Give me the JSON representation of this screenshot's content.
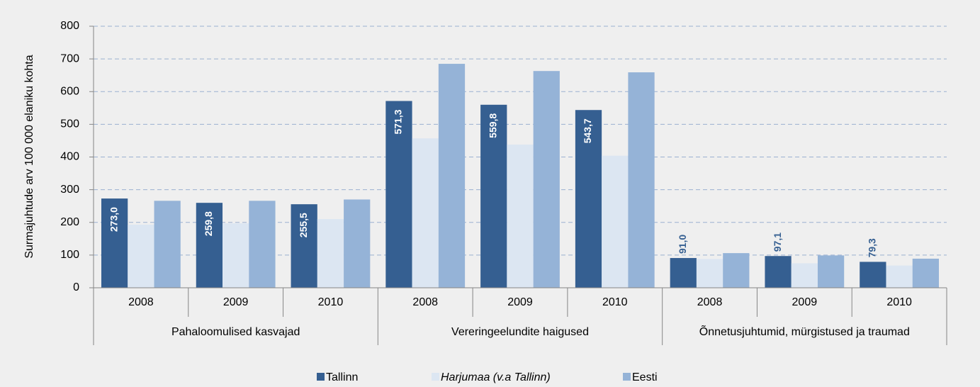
{
  "chart_data": {
    "type": "bar",
    "y_label": "Surmajuhtude arv 100 000 elaniku kohta",
    "categories": [
      "2008",
      "2009",
      "2010",
      "2008",
      "2009",
      "2010",
      "2008",
      "2009",
      "2010"
    ],
    "groups": [
      "Pahaloomulised kasvajad",
      "Vereringeelundite haigused",
      "Õnnetusjuhtumid, mürgistused ja traumad"
    ],
    "series": [
      {
        "name": "Tallinn",
        "color": "#355f91",
        "values": [
          273.0,
          259.8,
          255.5,
          571.3,
          559.8,
          543.7,
          91.0,
          97.1,
          79.3
        ],
        "value_labels": [
          "273,0",
          "259,8",
          "255,5",
          "571,3",
          "559,8",
          "543,7",
          "91,0",
          "97,1",
          "79,3"
        ]
      },
      {
        "name": "Harjumaa (v.a Tallinn)",
        "color": "#dce6f2",
        "values": [
          193,
          197,
          210,
          457,
          438,
          404,
          88,
          75,
          68
        ],
        "italic": true
      },
      {
        "name": "Eesti",
        "color": "#95b3d7",
        "values": [
          266,
          266,
          270,
          685,
          663,
          659,
          106,
          99,
          89
        ]
      }
    ],
    "ylim": [
      0,
      800
    ],
    "yticks": [
      0,
      100,
      200,
      300,
      400,
      500,
      600,
      700,
      800
    ],
    "grid": true,
    "legend": "bottom"
  }
}
